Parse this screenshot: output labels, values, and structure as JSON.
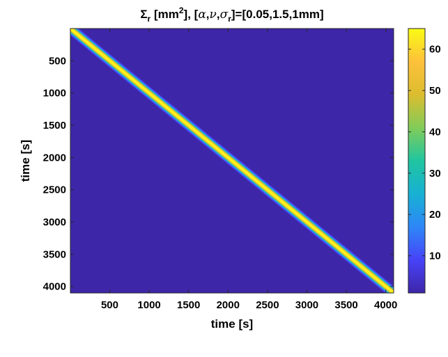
{
  "chart_data": {
    "type": "heatmap",
    "title_parts": {
      "sigma": "Σ",
      "sigma_sub": "r",
      "mid": " [mm",
      "mid_sup": "2",
      "after_sup": "], [",
      "alpha": "α",
      "comma1": ",",
      "nu": "ν",
      "comma2": ",",
      "sigma2": "σ",
      "sigma2_sub": "r",
      "tail": "]=[0.05,1.5,1mm]"
    },
    "xlabel": "time [s]",
    "ylabel": "time [s]",
    "xlim": [
      1,
      4100
    ],
    "ylim": [
      1,
      4100
    ],
    "y_reversed": true,
    "x_ticks": [
      500,
      1000,
      1500,
      2000,
      2500,
      3000,
      3500,
      4000
    ],
    "x_tick_labels": [
      "500",
      "1000",
      "1500",
      "2000",
      "2500",
      "3000",
      "3500",
      "4000"
    ],
    "y_ticks": [
      500,
      1000,
      1500,
      2000,
      2500,
      3000,
      3500,
      4000
    ],
    "y_tick_labels": [
      "500",
      "1000",
      "1500",
      "2000",
      "2500",
      "3000",
      "3500",
      "4000"
    ],
    "colorbar": {
      "colormap": "parula",
      "clim": [
        1,
        65
      ],
      "ticks": [
        10,
        20,
        30,
        40,
        50,
        60
      ],
      "tick_labels": [
        "10",
        "20",
        "30",
        "40",
        "50",
        "60"
      ]
    },
    "pattern": {
      "description": "diagonal band",
      "peak_value": 64,
      "background_value": 1
    },
    "grid": false
  },
  "colors": {
    "colormap_stops": [
      "#3e26a8",
      "#4743f8",
      "#2e87f7",
      "#17b1d3",
      "#20c5a0",
      "#81cc59",
      "#dcbd2f",
      "#fdc13b",
      "#f9fb14"
    ],
    "background_fill": "#3e26a8",
    "axis_color": "#262626"
  }
}
